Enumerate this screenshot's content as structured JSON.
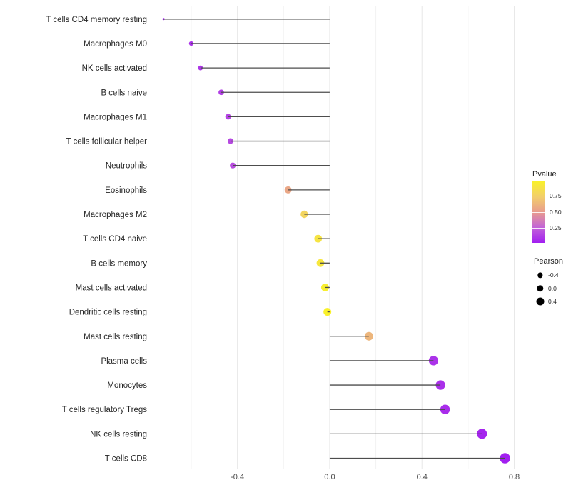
{
  "chart_data": {
    "type": "lollipop",
    "title": "",
    "xlabel": "",
    "ylabel": "",
    "xlim": [
      -0.77,
      0.82
    ],
    "x_ticks": [
      -0.4,
      0.0,
      0.4,
      0.8
    ],
    "x_tick_labels": [
      "-0.4",
      "0.0",
      "0.4",
      "0.8"
    ],
    "grid_major": [
      -0.4,
      0.0,
      0.4,
      0.8
    ],
    "grid_minor": [
      -0.6,
      -0.2,
      0.2,
      0.6
    ],
    "baseline_x": 0.0,
    "points": [
      {
        "label": "T cells CD4 memory resting",
        "pearson": -0.72,
        "pvalue": 0.02
      },
      {
        "label": "Macrophages M0",
        "pearson": -0.6,
        "pvalue": 0.08
      },
      {
        "label": "NK cells activated",
        "pearson": -0.56,
        "pvalue": 0.1
      },
      {
        "label": "B cells naive",
        "pearson": -0.47,
        "pvalue": 0.13
      },
      {
        "label": "Macrophages M1",
        "pearson": -0.44,
        "pvalue": 0.15
      },
      {
        "label": "T cells follicular helper",
        "pearson": -0.43,
        "pvalue": 0.17
      },
      {
        "label": "Neutrophils",
        "pearson": -0.42,
        "pvalue": 0.18
      },
      {
        "label": "Eosinophils",
        "pearson": -0.18,
        "pvalue": 0.55
      },
      {
        "label": "Macrophages M2",
        "pearson": -0.11,
        "pvalue": 0.78
      },
      {
        "label": "T cells CD4 naive",
        "pearson": -0.05,
        "pvalue": 0.88
      },
      {
        "label": "B cells memory",
        "pearson": -0.04,
        "pvalue": 0.9
      },
      {
        "label": "Mast cells activated",
        "pearson": -0.02,
        "pvalue": 0.95
      },
      {
        "label": "Dendritic cells resting",
        "pearson": -0.01,
        "pvalue": 0.97
      },
      {
        "label": "Mast cells resting",
        "pearson": 0.17,
        "pvalue": 0.62
      },
      {
        "label": "Plasma cells",
        "pearson": 0.45,
        "pvalue": 0.09
      },
      {
        "label": "Monocytes",
        "pearson": 0.48,
        "pvalue": 0.08
      },
      {
        "label": "T cells regulatory  Tregs",
        "pearson": 0.5,
        "pvalue": 0.07
      },
      {
        "label": "NK cells resting",
        "pearson": 0.66,
        "pvalue": 0.04
      },
      {
        "label": "T cells CD8",
        "pearson": 0.76,
        "pvalue": 0.02
      }
    ],
    "color_scale": {
      "title": "Pvalue",
      "domain": [
        0.02,
        0.97
      ],
      "stops": [
        "#A21FF0",
        "#C263D8",
        "#E89B8E",
        "#F2CE6B",
        "#F9F12B"
      ],
      "ticks": [
        0.25,
        0.5,
        0.75
      ],
      "tick_labels": [
        "0.25",
        "0.50",
        "0.75"
      ]
    },
    "size_scale": {
      "title": "Pearson",
      "domain": [
        -0.72,
        0.76
      ],
      "legend_values": [
        -0.4,
        0.0,
        0.4
      ],
      "legend_labels": [
        "-0.4",
        "0.0",
        "0.4"
      ]
    },
    "legend_position": "right",
    "grid_on": true
  },
  "legend": {
    "pvalue_title": "Pvalue",
    "pearson_title": "Pearson"
  },
  "colors": {
    "background": "#ffffff",
    "stem": "#4d4d4d",
    "grid_major": "#e7e7e7",
    "grid_minor": "#f2f2f2",
    "axis_tick_text": "#4d4d4d",
    "category_text": "#262626",
    "size_legend_dot": "#000000"
  }
}
